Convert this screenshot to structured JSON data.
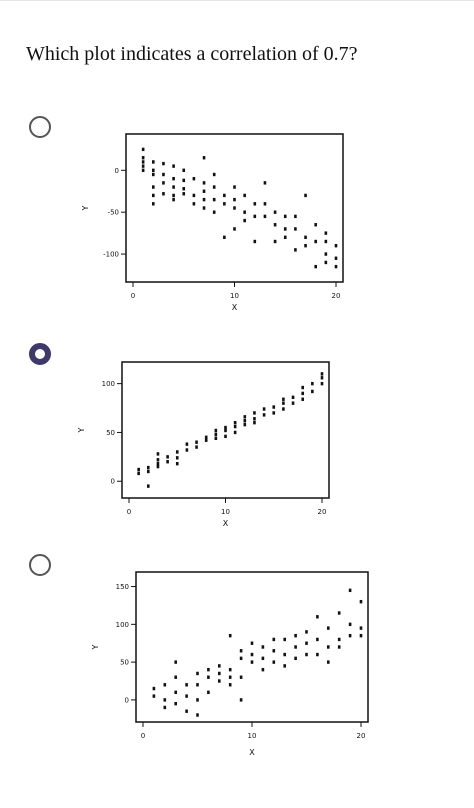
{
  "question": "Which plot indicates a correlation of 0.7?",
  "selected_option": 2,
  "chart_data": [
    {
      "type": "scatter",
      "xlabel": "X",
      "ylabel": "Y",
      "xlim": [
        0,
        20
      ],
      "ylim": [
        -125,
        35
      ],
      "xticks": [
        0,
        10,
        20
      ],
      "yticks": [
        0,
        -50,
        -100
      ],
      "xtick_labels": [
        "0",
        "10",
        "20"
      ],
      "ytick_labels": [
        "0",
        "-50",
        "-100"
      ],
      "points": [
        [
          1,
          25
        ],
        [
          1,
          15
        ],
        [
          1,
          10
        ],
        [
          1,
          5
        ],
        [
          1,
          0
        ],
        [
          2,
          10
        ],
        [
          2,
          0
        ],
        [
          2,
          -5
        ],
        [
          2,
          -20
        ],
        [
          2,
          -40
        ],
        [
          2,
          -30
        ],
        [
          3,
          8
        ],
        [
          3,
          -5
        ],
        [
          3,
          -15
        ],
        [
          3,
          -28
        ],
        [
          4,
          5
        ],
        [
          4,
          -10
        ],
        [
          4,
          -20
        ],
        [
          4,
          -30
        ],
        [
          4,
          -35
        ],
        [
          5,
          0
        ],
        [
          5,
          -12
        ],
        [
          5,
          -22
        ],
        [
          5,
          -28
        ],
        [
          6,
          -10
        ],
        [
          6,
          -30
        ],
        [
          6,
          -40
        ],
        [
          7,
          -15
        ],
        [
          7,
          -25
        ],
        [
          7,
          -35
        ],
        [
          7,
          -45
        ],
        [
          7,
          15
        ],
        [
          8,
          -5
        ],
        [
          8,
          -20
        ],
        [
          8,
          -35
        ],
        [
          8,
          -50
        ],
        [
          9,
          -30
        ],
        [
          9,
          -40
        ],
        [
          9,
          -80
        ],
        [
          10,
          -20
        ],
        [
          10,
          -35
        ],
        [
          10,
          -45
        ],
        [
          10,
          -70
        ],
        [
          11,
          -30
        ],
        [
          11,
          -50
        ],
        [
          11,
          -60
        ],
        [
          12,
          -40
        ],
        [
          12,
          -55
        ],
        [
          12,
          -85
        ],
        [
          13,
          -15
        ],
        [
          13,
          -40
        ],
        [
          13,
          -55
        ],
        [
          14,
          -50
        ],
        [
          14,
          -65
        ],
        [
          14,
          -85
        ],
        [
          15,
          -55
        ],
        [
          15,
          -70
        ],
        [
          15,
          -80
        ],
        [
          16,
          -55
        ],
        [
          16,
          -70
        ],
        [
          16,
          -95
        ],
        [
          17,
          -30
        ],
        [
          17,
          -80
        ],
        [
          17,
          -90
        ],
        [
          18,
          -65
        ],
        [
          18,
          -85
        ],
        [
          18,
          -115
        ],
        [
          19,
          -75
        ],
        [
          19,
          -85
        ],
        [
          19,
          -100
        ],
        [
          19,
          -110
        ],
        [
          20,
          -90
        ],
        [
          20,
          -105
        ],
        [
          20,
          -115
        ]
      ]
    },
    {
      "type": "scatter",
      "xlabel": "X",
      "ylabel": "Y",
      "xlim": [
        0,
        20
      ],
      "ylim": [
        -10,
        115
      ],
      "xticks": [
        0,
        10,
        20
      ],
      "yticks": [
        0,
        50,
        100
      ],
      "xtick_labels": [
        "0",
        "10",
        "20"
      ],
      "ytick_labels": [
        "0",
        "50",
        "100"
      ],
      "points": [
        [
          1,
          8
        ],
        [
          1,
          12
        ],
        [
          2,
          10
        ],
        [
          2,
          14
        ],
        [
          2,
          -5
        ],
        [
          3,
          18
        ],
        [
          3,
          22
        ],
        [
          3,
          28
        ],
        [
          3,
          15
        ],
        [
          4,
          20
        ],
        [
          4,
          25
        ],
        [
          5,
          24
        ],
        [
          5,
          18
        ],
        [
          5,
          30
        ],
        [
          6,
          32
        ],
        [
          6,
          38
        ],
        [
          7,
          40
        ],
        [
          7,
          35
        ],
        [
          8,
          42
        ],
        [
          8,
          45
        ],
        [
          9,
          44
        ],
        [
          9,
          48
        ],
        [
          9,
          52
        ],
        [
          10,
          46
        ],
        [
          10,
          52
        ],
        [
          10,
          55
        ],
        [
          11,
          50
        ],
        [
          11,
          56
        ],
        [
          11,
          60
        ],
        [
          12,
          58
        ],
        [
          12,
          62
        ],
        [
          12,
          66
        ],
        [
          13,
          60
        ],
        [
          13,
          64
        ],
        [
          13,
          70
        ],
        [
          14,
          68
        ],
        [
          14,
          74
        ],
        [
          15,
          70
        ],
        [
          15,
          76
        ],
        [
          16,
          74
        ],
        [
          16,
          80
        ],
        [
          16,
          84
        ],
        [
          17,
          80
        ],
        [
          17,
          86
        ],
        [
          18,
          84
        ],
        [
          18,
          90
        ],
        [
          18,
          96
        ],
        [
          19,
          92
        ],
        [
          19,
          100
        ],
        [
          20,
          100
        ],
        [
          20,
          106
        ],
        [
          20,
          110
        ]
      ]
    },
    {
      "type": "scatter",
      "xlabel": "X",
      "ylabel": "Y",
      "xlim": [
        0,
        20
      ],
      "ylim": [
        -20,
        160
      ],
      "xticks": [
        0,
        10,
        20
      ],
      "yticks": [
        0,
        50,
        100,
        150
      ],
      "xtick_labels": [
        "0",
        "10",
        "20"
      ],
      "ytick_labels": [
        "0",
        "50",
        "100",
        "150"
      ],
      "points": [
        [
          1,
          15
        ],
        [
          1,
          5
        ],
        [
          2,
          20
        ],
        [
          2,
          -10
        ],
        [
          2,
          0
        ],
        [
          3,
          50
        ],
        [
          3,
          30
        ],
        [
          3,
          10
        ],
        [
          3,
          -5
        ],
        [
          4,
          20
        ],
        [
          4,
          -15
        ],
        [
          4,
          5
        ],
        [
          5,
          35
        ],
        [
          5,
          20
        ],
        [
          5,
          -20
        ],
        [
          5,
          0
        ],
        [
          6,
          30
        ],
        [
          6,
          10
        ],
        [
          6,
          40
        ],
        [
          7,
          35
        ],
        [
          7,
          25
        ],
        [
          7,
          45
        ],
        [
          8,
          85
        ],
        [
          8,
          40
        ],
        [
          8,
          20
        ],
        [
          8,
          30
        ],
        [
          9,
          55
        ],
        [
          9,
          30
        ],
        [
          9,
          0
        ],
        [
          9,
          65
        ],
        [
          10,
          75
        ],
        [
          10,
          50
        ],
        [
          10,
          60
        ],
        [
          11,
          70
        ],
        [
          11,
          55
        ],
        [
          11,
          40
        ],
        [
          12,
          65
        ],
        [
          12,
          50
        ],
        [
          12,
          80
        ],
        [
          13,
          80
        ],
        [
          13,
          60
        ],
        [
          13,
          45
        ],
        [
          14,
          85
        ],
        [
          14,
          70
        ],
        [
          14,
          55
        ],
        [
          15,
          90
        ],
        [
          15,
          75
        ],
        [
          15,
          60
        ],
        [
          16,
          110
        ],
        [
          16,
          80
        ],
        [
          16,
          60
        ],
        [
          17,
          95
        ],
        [
          17,
          70
        ],
        [
          17,
          50
        ],
        [
          18,
          115
        ],
        [
          18,
          80
        ],
        [
          18,
          70
        ],
        [
          19,
          145
        ],
        [
          19,
          100
        ],
        [
          19,
          85
        ],
        [
          20,
          130
        ],
        [
          20,
          95
        ],
        [
          20,
          85
        ]
      ]
    }
  ]
}
